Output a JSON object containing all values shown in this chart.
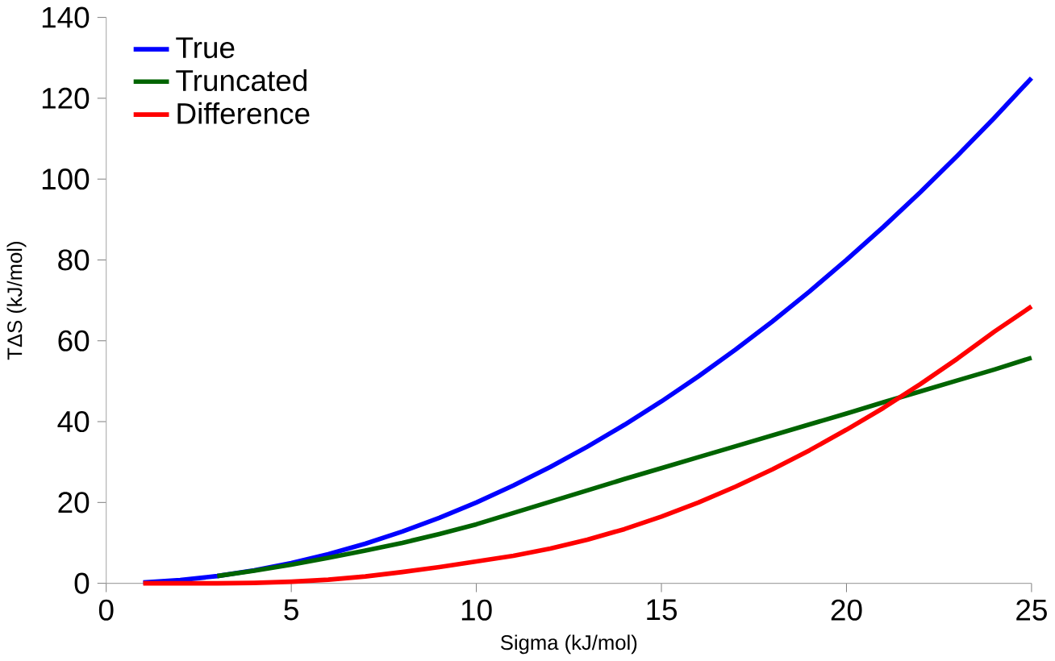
{
  "chart_data": {
    "type": "line",
    "xlabel": "Sigma (kJ/mol)",
    "ylabel": "TΔS (kJ/mol)",
    "x": [
      1,
      2,
      3,
      4,
      5,
      6,
      7,
      8,
      9,
      10,
      11,
      12,
      13,
      14,
      15,
      16,
      17,
      18,
      19,
      20,
      21,
      22,
      23,
      24,
      25
    ],
    "series": [
      {
        "name": "True",
        "color": "#0000ff",
        "values": [
          0.2,
          0.8,
          1.8,
          3.2,
          5,
          7.2,
          9.8,
          12.8,
          16.2,
          20,
          24.2,
          28.8,
          33.8,
          39.2,
          45,
          51.2,
          57.8,
          64.8,
          72.2,
          80,
          88.2,
          96.8,
          105.8,
          115.2,
          125
        ]
      },
      {
        "name": "Truncated",
        "color": "#006400",
        "values": [
          null,
          null,
          1.8,
          3.1,
          4.6,
          6.3,
          8.1,
          10,
          12.2,
          14.6,
          17.4,
          20.2,
          23,
          25.8,
          28.5,
          31.2,
          33.9,
          36.6,
          39.3,
          42,
          44.8,
          47.5,
          50.2,
          52.9,
          55.8
        ]
      },
      {
        "name": "Difference",
        "color": "#ff0000",
        "values": [
          0,
          0,
          0,
          0.1,
          0.4,
          0.9,
          1.7,
          2.8,
          4,
          5.4,
          6.8,
          8.6,
          10.8,
          13.4,
          16.5,
          20,
          23.9,
          28.2,
          32.9,
          38,
          43.4,
          49.3,
          55.6,
          62.3,
          68.5
        ]
      }
    ],
    "xlim": [
      0,
      25
    ],
    "xticks": [
      0,
      5,
      10,
      15,
      20,
      25
    ],
    "ylim": [
      0,
      140
    ],
    "yticks": [
      0,
      20,
      40,
      60,
      80,
      100,
      120,
      140
    ],
    "grid": false,
    "legend": "top left",
    "marker": "none",
    "line_style": "solid"
  }
}
